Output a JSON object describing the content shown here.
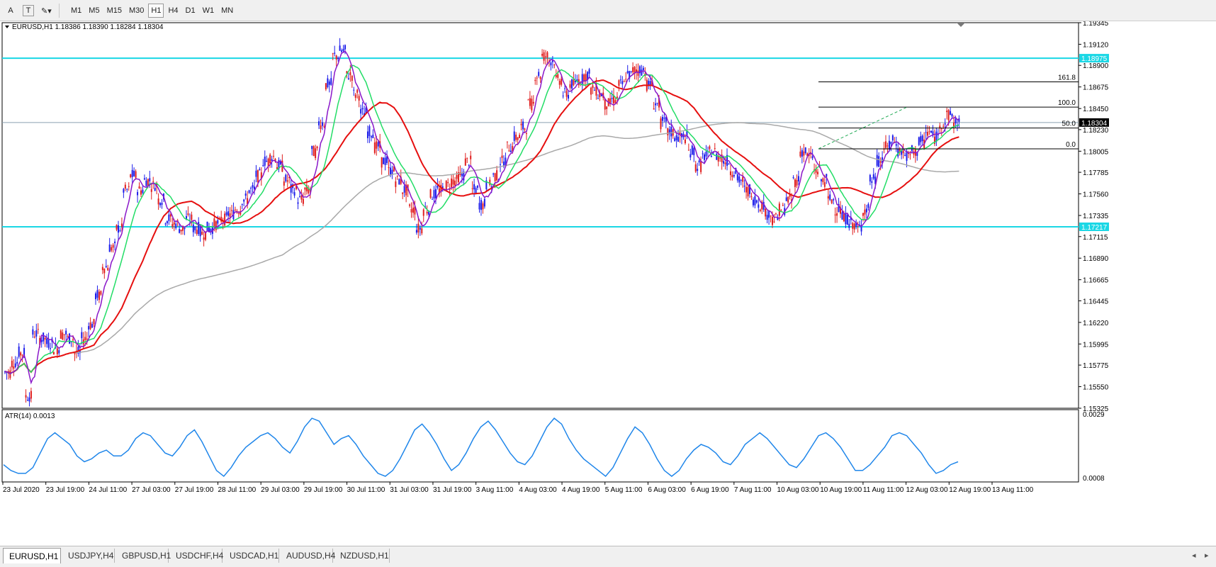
{
  "toolbar": {
    "tools": [
      {
        "name": "text-tool",
        "label": "A"
      },
      {
        "name": "text-label-tool",
        "label": "T"
      },
      {
        "name": "shapes-tool",
        "label": "✎▾"
      }
    ],
    "timeframes": [
      "M1",
      "M5",
      "M15",
      "M30",
      "H1",
      "H4",
      "D1",
      "W1",
      "MN"
    ],
    "active_timeframe": "H1"
  },
  "chart": {
    "header": "EURUSD,H1  1.18386 1.18390 1.18284 1.18304",
    "colors": {
      "bull": "#1d1dea",
      "bear": "#e01e1e",
      "ma_red": "#e60f0f",
      "ma_green": "#22dd66",
      "ma_purple": "#8a17c9",
      "ma_gray": "#a9a9a9",
      "hline": "#1ad7e5",
      "atr": "#1f86ea",
      "price_label_bg": "#000000",
      "level_label_bg": "#1ad7e5"
    },
    "price_axis": {
      "ticks": [
        "1.19345",
        "1.19120",
        "1.18900",
        "1.18675",
        "1.18450",
        "1.18230",
        "1.18005",
        "1.17785",
        "1.17560",
        "1.17335",
        "1.17115",
        "1.16890",
        "1.16665",
        "1.16445",
        "1.16220",
        "1.15995",
        "1.15775",
        "1.15550",
        "1.15325"
      ],
      "current_price": "1.18304",
      "range": [
        1.15325,
        1.19345
      ]
    },
    "levels": [
      {
        "label": "1.18975",
        "value": 1.18975
      },
      {
        "label": "1.17217",
        "value": 1.17217
      }
    ],
    "fibonacci": [
      {
        "label": "161.8",
        "value": 1.18728
      },
      {
        "label": "100.0",
        "value": 1.18465
      },
      {
        "label": "50.0",
        "value": 1.18247
      },
      {
        "label": "0.0",
        "value": 1.1803
      }
    ],
    "time_axis": [
      "23 Jul 2020",
      "23 Jul 19:00",
      "24 Jul 11:00",
      "27 Jul 03:00",
      "27 Jul 19:00",
      "28 Jul 11:00",
      "29 Jul 03:00",
      "29 Jul 19:00",
      "30 Jul 11:00",
      "31 Jul 03:00",
      "31 Jul 19:00",
      "3 Aug 11:00",
      "4 Aug 03:00",
      "4 Aug 19:00",
      "5 Aug 11:00",
      "6 Aug 03:00",
      "6 Aug 19:00",
      "7 Aug 11:00",
      "10 Aug 03:00",
      "10 Aug 19:00",
      "11 Aug 11:00",
      "12 Aug 03:00",
      "12 Aug 19:00",
      "13 Aug 11:00"
    ],
    "price_path": [
      1.157,
      1.158,
      1.159,
      1.1545,
      1.161,
      1.1605,
      1.16,
      1.1595,
      1.161,
      1.1605,
      1.159,
      1.1605,
      1.162,
      1.165,
      1.168,
      1.17,
      1.172,
      1.176,
      1.1775,
      1.176,
      1.177,
      1.1765,
      1.175,
      1.173,
      1.1725,
      1.172,
      1.173,
      1.172,
      1.1715,
      1.172,
      1.1725,
      1.173,
      1.1735,
      1.174,
      1.175,
      1.176,
      1.1775,
      1.179,
      1.1795,
      1.1785,
      1.177,
      1.176,
      1.175,
      1.176,
      1.18,
      1.183,
      1.187,
      1.19,
      1.1905,
      1.188,
      1.186,
      1.184,
      1.182,
      1.1805,
      1.179,
      1.178,
      1.177,
      1.176,
      1.174,
      1.172,
      1.174,
      1.1755,
      1.176,
      1.1765,
      1.177,
      1.1775,
      1.179,
      1.176,
      1.1745,
      1.1765,
      1.1775,
      1.179,
      1.1805,
      1.1815,
      1.1825,
      1.185,
      1.188,
      1.19,
      1.1895,
      1.1875,
      1.186,
      1.187,
      1.1875,
      1.188,
      1.1865,
      1.186,
      1.185,
      1.1855,
      1.187,
      1.188,
      1.1885,
      1.1885,
      1.187,
      1.185,
      1.183,
      1.182,
      1.1815,
      1.1815,
      1.18,
      1.1785,
      1.1795,
      1.18,
      1.1795,
      1.179,
      1.178,
      1.177,
      1.176,
      1.175,
      1.1745,
      1.1735,
      1.173,
      1.174,
      1.175,
      1.177,
      1.18,
      1.1795,
      1.178,
      1.177,
      1.175,
      1.174,
      1.173,
      1.1725,
      1.172,
      1.174,
      1.177,
      1.179,
      1.1805,
      1.181,
      1.18,
      1.1795,
      1.18,
      1.181,
      1.182,
      1.1815,
      1.183,
      1.1838,
      1.183
    ],
    "atr_label": "ATR(14) 0.0013",
    "atr_axis": {
      "top": "0.0029",
      "bottom": "0.0008"
    },
    "atr_values": [
      0.0012,
      0.001,
      0.0009,
      0.0009,
      0.0011,
      0.0016,
      0.0021,
      0.0023,
      0.0021,
      0.0019,
      0.0015,
      0.0013,
      0.0014,
      0.0016,
      0.0017,
      0.0015,
      0.0015,
      0.0017,
      0.0021,
      0.0023,
      0.0022,
      0.0019,
      0.0016,
      0.0015,
      0.0018,
      0.0022,
      0.0024,
      0.002,
      0.0015,
      0.001,
      0.0008,
      0.0011,
      0.0015,
      0.0018,
      0.002,
      0.0022,
      0.0023,
      0.0021,
      0.0018,
      0.0016,
      0.002,
      0.0025,
      0.0028,
      0.0027,
      0.0023,
      0.0019,
      0.0021,
      0.0022,
      0.0019,
      0.0015,
      0.0012,
      0.0009,
      0.0008,
      0.001,
      0.0014,
      0.0019,
      0.0024,
      0.0026,
      0.0023,
      0.0019,
      0.0014,
      0.001,
      0.0012,
      0.0016,
      0.0021,
      0.0025,
      0.0027,
      0.0024,
      0.002,
      0.0016,
      0.0013,
      0.0012,
      0.0015,
      0.002,
      0.0025,
      0.0028,
      0.0026,
      0.0021,
      0.0017,
      0.0014,
      0.0012,
      0.001,
      0.0008,
      0.0011,
      0.0016,
      0.0021,
      0.0025,
      0.0023,
      0.0019,
      0.0014,
      0.001,
      0.0008,
      0.001,
      0.0014,
      0.0017,
      0.0019,
      0.0018,
      0.0016,
      0.0013,
      0.0012,
      0.0015,
      0.0019,
      0.0021,
      0.0023,
      0.0021,
      0.0018,
      0.0015,
      0.0012,
      0.0011,
      0.0014,
      0.0018,
      0.0022,
      0.0023,
      0.0021,
      0.0018,
      0.0014,
      0.001,
      0.001,
      0.0012,
      0.0015,
      0.0018,
      0.0022,
      0.0023,
      0.0022,
      0.0019,
      0.0016,
      0.0012,
      0.0009,
      0.001,
      0.0012,
      0.0013
    ]
  },
  "tabs": [
    "EURUSD,H1",
    "USDJPY,H4",
    "GBPUSD,H1",
    "USDCHF,H4",
    "USDCAD,H1",
    "AUDUSD,H4",
    "NZDUSD,H1"
  ],
  "active_tab": "EURUSD,H1"
}
